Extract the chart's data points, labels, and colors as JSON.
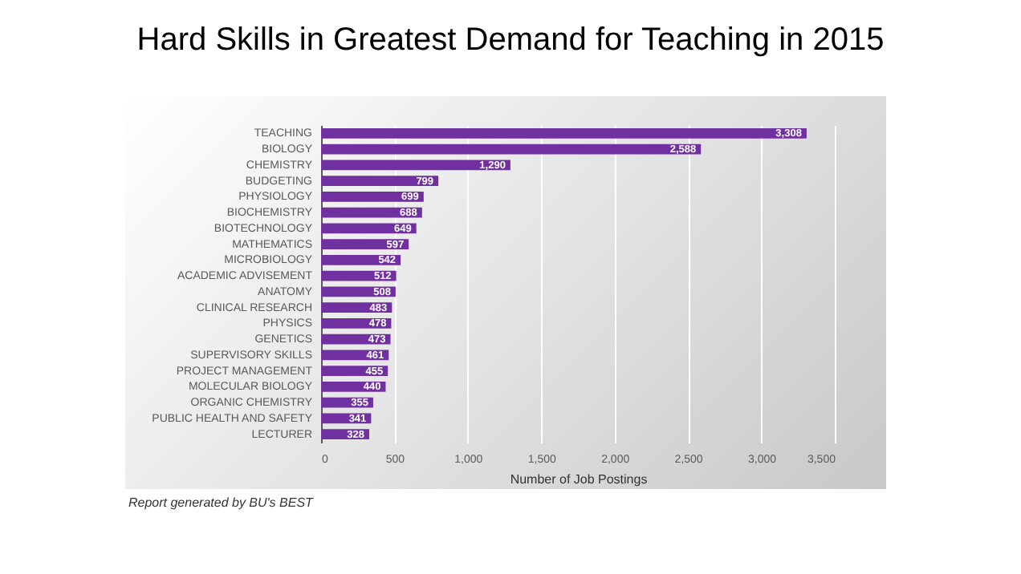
{
  "chart_data": {
    "type": "bar",
    "orientation": "horizontal",
    "title": "Hard Skills in Greatest Demand for Teaching in 2015",
    "xlabel": "Number of Job Postings",
    "categories": [
      "TEACHING",
      "BIOLOGY",
      "CHEMISTRY",
      "BUDGETING",
      "PHYSIOLOGY",
      "BIOCHEMISTRY",
      "BIOTECHNOLOGY",
      "MATHEMATICS",
      "MICROBIOLOGY",
      "ACADEMIC ADVISEMENT",
      "ANATOMY",
      "CLINICAL RESEARCH",
      "PHYSICS",
      "GENETICS",
      "SUPERVISORY SKILLS",
      "PROJECT MANAGEMENT",
      "MOLECULAR BIOLOGY",
      "ORGANIC CHEMISTRY",
      "PUBLIC HEALTH AND SAFETY",
      "LECTURER"
    ],
    "values": [
      3308,
      2588,
      1290,
      799,
      699,
      688,
      649,
      597,
      542,
      512,
      508,
      483,
      478,
      473,
      461,
      455,
      440,
      355,
      341,
      328
    ],
    "value_labels": [
      "3,308",
      "2,588",
      "1,290",
      "799",
      "699",
      "688",
      "649",
      "597",
      "542",
      "512",
      "508",
      "483",
      "478",
      "473",
      "461",
      "455",
      "440",
      "355",
      "341",
      "328"
    ],
    "color": "#7030a0",
    "grid": "x",
    "xlim": [
      0,
      3500
    ],
    "xticks": [
      {
        "value": 0,
        "label": "0"
      },
      {
        "value": 500,
        "label": "500"
      },
      {
        "value": 1000,
        "label": "1,000"
      },
      {
        "value": 1500,
        "label": "1,500"
      },
      {
        "value": 2000,
        "label": "2,000"
      },
      {
        "value": 2500,
        "label": "2,500"
      },
      {
        "value": 3000,
        "label": "3,000"
      },
      {
        "value": 3500,
        "label": "3,500"
      }
    ],
    "annotations": [
      "Report generated by BU's BEST"
    ]
  }
}
